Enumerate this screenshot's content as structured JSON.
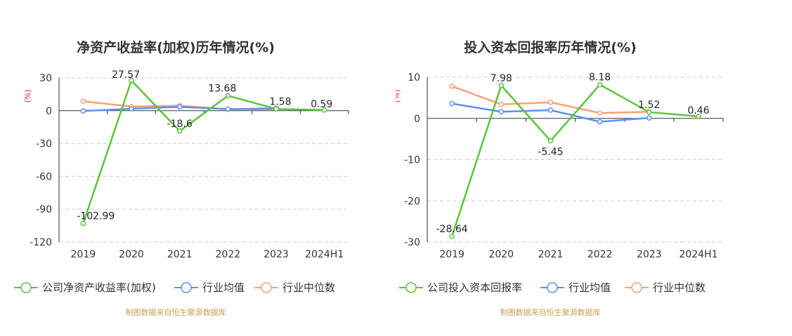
{
  "chart_data": [
    {
      "type": "line",
      "title": "净资产收益率(加权)历年情况(%)",
      "ylabel": "(%)",
      "categories": [
        "2019",
        "2020",
        "2021",
        "2022",
        "2023",
        "2024H1"
      ],
      "ylim": [
        -120,
        30
      ],
      "yticks": [
        30,
        0,
        -30,
        -60,
        -90,
        -120
      ],
      "grid": true,
      "legend_position": "bottom",
      "series": [
        {
          "name": "公司净资产收益率(加权)",
          "color": "#5cc43a",
          "values": [
            -102.99,
            27.57,
            -18.6,
            13.68,
            1.58,
            0.59
          ],
          "labels": [
            "-102.99",
            "27.57",
            "-18.6",
            "13.68",
            "1.58",
            "0.59"
          ]
        },
        {
          "name": "行业均值",
          "color": "#5b8ff9",
          "values": [
            -0.3,
            1.8,
            3.5,
            1.5,
            1.6,
            null
          ]
        },
        {
          "name": "行业中位数",
          "color": "#f6a07a",
          "values": [
            8.6,
            3.8,
            4.6,
            1.2,
            2.5,
            null
          ]
        }
      ],
      "source_note": "制图数据来自恒生聚源数据库"
    },
    {
      "type": "line",
      "title": "投入资本回报率历年情况(%)",
      "ylabel": "(%)",
      "categories": [
        "2019",
        "2020",
        "2021",
        "2022",
        "2023",
        "2024H1"
      ],
      "ylim": [
        -30,
        10
      ],
      "yticks": [
        10,
        0,
        -10,
        -20,
        -30
      ],
      "grid": true,
      "legend_position": "bottom",
      "series": [
        {
          "name": "公司投入资本回报率",
          "color": "#5cc43a",
          "values": [
            -28.64,
            7.98,
            -5.45,
            8.18,
            1.52,
            0.46
          ],
          "labels": [
            "-28.64",
            "7.98",
            "-5.45",
            "8.18",
            "1.52",
            "0.46"
          ]
        },
        {
          "name": "行业均值",
          "color": "#5b8ff9",
          "values": [
            3.6,
            1.6,
            2.0,
            -0.8,
            0.1,
            null
          ]
        },
        {
          "name": "行业中位数",
          "color": "#f6a07a",
          "values": [
            7.8,
            3.4,
            3.9,
            1.3,
            1.6,
            null
          ]
        }
      ],
      "source_note": "制图数据来自恒生聚源数据库"
    }
  ]
}
